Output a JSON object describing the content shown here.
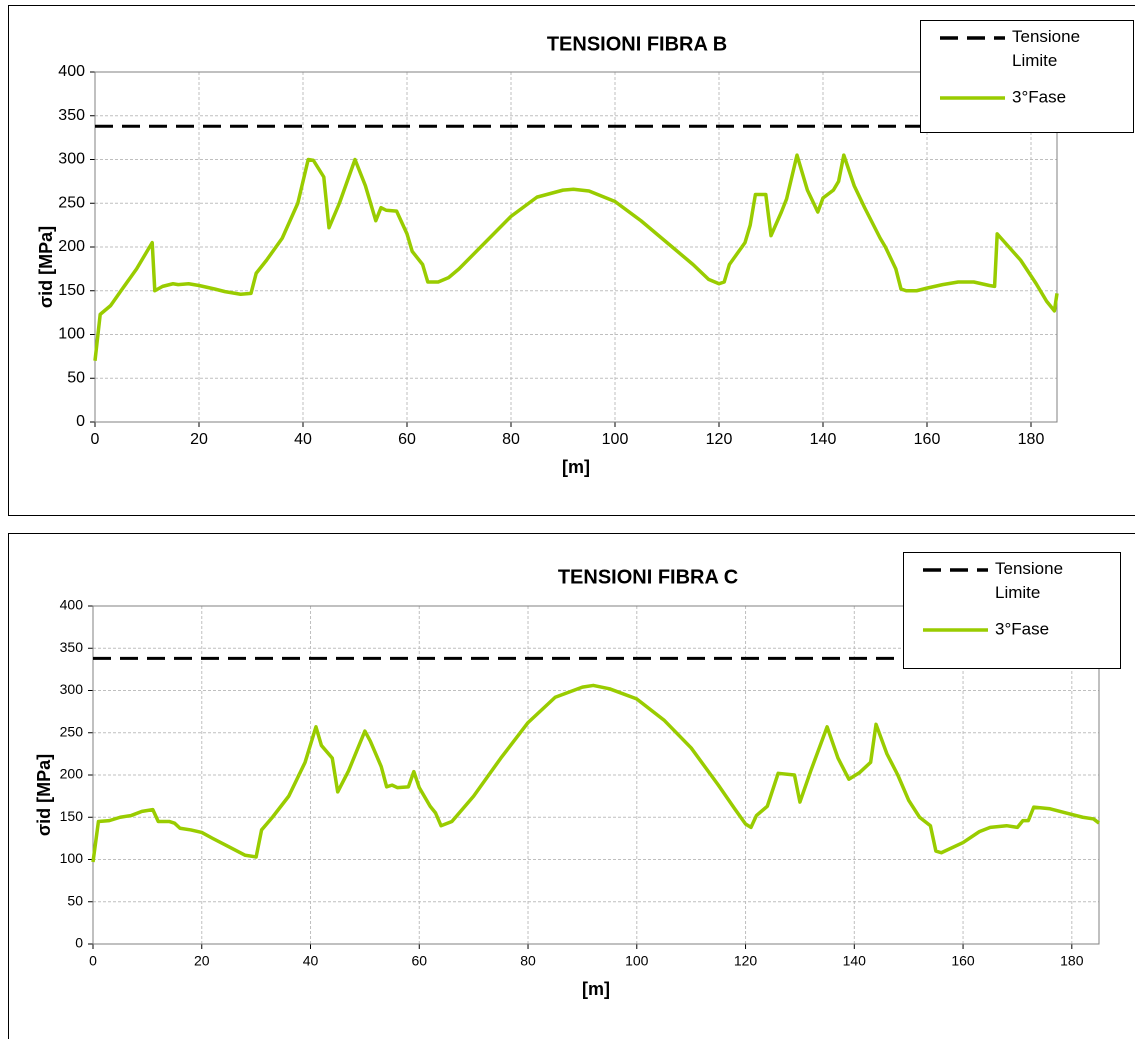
{
  "chart_data": [
    {
      "type": "line",
      "title": "TENSIONI FIBRA B",
      "x_label": "[m]",
      "y_label": "σid [MPa]",
      "xlim": [
        0,
        185
      ],
      "xticks": [
        0,
        20,
        40,
        60,
        80,
        100,
        120,
        140,
        160,
        180
      ],
      "ylim": [
        0,
        400
      ],
      "yticks": [
        0,
        50,
        100,
        150,
        200,
        250,
        300,
        350,
        400
      ],
      "grid": true,
      "legend": "upper right",
      "series": [
        {
          "name": "Tensione Limite",
          "color": "#000000",
          "dashed": true,
          "x": [
            0,
            185
          ],
          "values": [
            338,
            338
          ]
        },
        {
          "name": "3°Fase",
          "color": "#99cc00",
          "dashed": false,
          "x": [
            0,
            1,
            3,
            5,
            8,
            10,
            11,
            11.5,
            13,
            15,
            16,
            18,
            20,
            23,
            25,
            28,
            30,
            31,
            33,
            36,
            39,
            41,
            42,
            44,
            45,
            47,
            50,
            52,
            54,
            55,
            56,
            58,
            60,
            61,
            63,
            64,
            66,
            68,
            70,
            75,
            80,
            85,
            90,
            92,
            95,
            100,
            105,
            110,
            115,
            118,
            120,
            121,
            122,
            125,
            126,
            127,
            129,
            130,
            132,
            133,
            135,
            137,
            139,
            140,
            142,
            143,
            144,
            146,
            148,
            151,
            152,
            154,
            155,
            156,
            158,
            160,
            163,
            166,
            169,
            172,
            173,
            173.5,
            175,
            178,
            181,
            183,
            184.5,
            185
          ],
          "values": [
            70,
            123,
            133,
            150,
            175,
            195,
            205,
            150,
            155,
            158,
            157,
            158,
            156,
            152,
            149,
            146,
            147,
            170,
            185,
            210,
            250,
            300,
            299,
            280,
            222,
            250,
            300,
            270,
            230,
            245,
            242,
            241,
            215,
            195,
            180,
            160,
            160,
            165,
            175,
            205,
            235,
            257,
            265,
            266,
            264,
            252,
            230,
            205,
            180,
            163,
            158,
            160,
            180,
            205,
            225,
            260,
            260,
            213,
            240,
            255,
            305,
            265,
            240,
            256,
            265,
            275,
            305,
            270,
            245,
            210,
            200,
            175,
            152,
            150,
            150,
            153,
            157,
            160,
            160,
            156,
            155,
            215,
            205,
            185,
            158,
            138,
            127,
            147
          ]
        }
      ]
    },
    {
      "type": "line",
      "title": "TENSIONI FIBRA C",
      "x_label": "[m]",
      "y_label": "σid [MPa]",
      "xlim": [
        0,
        185
      ],
      "xticks": [
        0,
        20,
        40,
        60,
        80,
        100,
        120,
        140,
        160,
        180
      ],
      "ylim": [
        0,
        400
      ],
      "yticks": [
        0,
        50,
        100,
        150,
        200,
        250,
        300,
        350,
        400
      ],
      "grid": true,
      "legend": "upper right",
      "series": [
        {
          "name": "Tensione Limite",
          "color": "#000000",
          "dashed": true,
          "x": [
            0,
            185
          ],
          "values": [
            338,
            338
          ]
        },
        {
          "name": "3°Fase",
          "color": "#99cc00",
          "dashed": false,
          "x": [
            0,
            1,
            3,
            5,
            7,
            9,
            11,
            12,
            14,
            15,
            16,
            18,
            20,
            22,
            25,
            28,
            30,
            31,
            33,
            36,
            39,
            41,
            42,
            44,
            45,
            47,
            50,
            51,
            53,
            54,
            55,
            56,
            58,
            59,
            60,
            62,
            63,
            64,
            66,
            70,
            75,
            80,
            85,
            90,
            92,
            95,
            100,
            105,
            110,
            115,
            118,
            120,
            121,
            122,
            124,
            126,
            129,
            130,
            132,
            135,
            137,
            139,
            141,
            143,
            144,
            146,
            148,
            150,
            152,
            154,
            155,
            156,
            160,
            163,
            165,
            168,
            170,
            171,
            172,
            173,
            176,
            179,
            182,
            184,
            185
          ],
          "values": [
            97,
            145,
            146,
            150,
            152,
            157,
            159,
            145,
            145,
            143,
            137,
            135,
            132,
            125,
            115,
            105,
            103,
            135,
            150,
            175,
            215,
            257,
            235,
            220,
            180,
            205,
            252,
            240,
            210,
            186,
            188,
            185,
            186,
            204,
            185,
            163,
            155,
            140,
            145,
            175,
            220,
            262,
            292,
            304,
            306,
            302,
            290,
            265,
            232,
            188,
            160,
            142,
            138,
            152,
            163,
            202,
            200,
            168,
            205,
            257,
            220,
            195,
            203,
            215,
            260,
            225,
            200,
            170,
            150,
            140,
            110,
            108,
            120,
            133,
            138,
            140,
            138,
            146,
            146,
            162,
            160,
            155,
            150,
            148,
            143
          ]
        }
      ]
    }
  ]
}
